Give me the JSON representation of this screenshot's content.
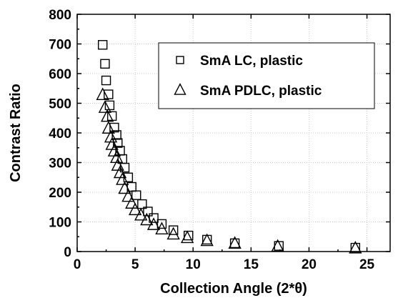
{
  "chart_data": {
    "type": "scatter",
    "title": "",
    "xlabel": "Collection Angle (2*θ)",
    "ylabel": "Contrast Ratio",
    "xlim": [
      0,
      27
    ],
    "ylim": [
      0,
      800
    ],
    "xticks": [
      0,
      5,
      10,
      15,
      20,
      25
    ],
    "yticks": [
      0,
      100,
      200,
      300,
      400,
      500,
      600,
      700,
      800
    ],
    "grid": true,
    "legend_position": "top-right",
    "series": [
      {
        "name": "SmA LC, plastic",
        "marker": "square",
        "points": [
          [
            2.2,
            697
          ],
          [
            2.4,
            633
          ],
          [
            2.5,
            577
          ],
          [
            2.7,
            530
          ],
          [
            2.8,
            493
          ],
          [
            3.0,
            457
          ],
          [
            3.2,
            418
          ],
          [
            3.4,
            393
          ],
          [
            3.5,
            366
          ],
          [
            3.7,
            340
          ],
          [
            3.9,
            312
          ],
          [
            4.1,
            283
          ],
          [
            4.4,
            250
          ],
          [
            4.7,
            218
          ],
          [
            5.1,
            190
          ],
          [
            5.6,
            160
          ],
          [
            6.1,
            135
          ],
          [
            6.6,
            113
          ],
          [
            7.3,
            93
          ],
          [
            8.3,
            72
          ],
          [
            9.6,
            54
          ],
          [
            11.2,
            40
          ],
          [
            13.6,
            28
          ],
          [
            17.4,
            19
          ],
          [
            24.0,
            13
          ]
        ]
      },
      {
        "name": "SmA PDLC, plastic",
        "marker": "triangle",
        "points": [
          [
            2.2,
            528
          ],
          [
            2.4,
            485
          ],
          [
            2.6,
            455
          ],
          [
            2.7,
            415
          ],
          [
            2.9,
            385
          ],
          [
            3.0,
            360
          ],
          [
            3.2,
            338
          ],
          [
            3.4,
            316
          ],
          [
            3.5,
            290
          ],
          [
            3.7,
            265
          ],
          [
            3.9,
            242
          ],
          [
            4.1,
            212
          ],
          [
            4.4,
            185
          ],
          [
            4.7,
            162
          ],
          [
            5.0,
            140
          ],
          [
            5.5,
            122
          ],
          [
            6.0,
            106
          ],
          [
            6.6,
            90
          ],
          [
            7.3,
            75
          ],
          [
            8.3,
            58
          ],
          [
            9.5,
            46
          ],
          [
            11.2,
            36
          ],
          [
            13.6,
            27
          ],
          [
            17.3,
            17
          ],
          [
            24.0,
            11
          ]
        ]
      }
    ]
  }
}
